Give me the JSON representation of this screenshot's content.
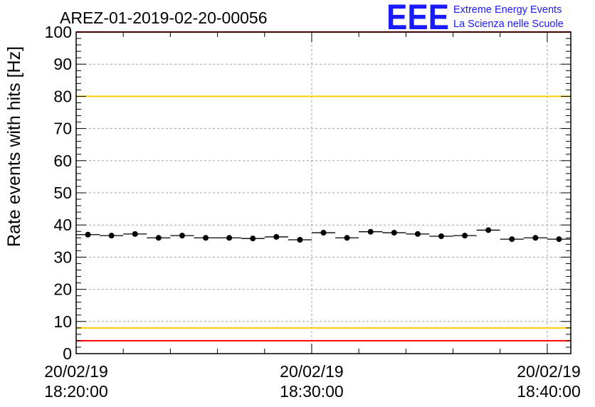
{
  "chart_data": {
    "type": "scatter",
    "title": "AREZ-01-2019-02-20-00056",
    "ylabel": "Rate events with hits [Hz]",
    "xlabel": "",
    "ylim": [
      0,
      100
    ],
    "yticks": [
      0,
      10,
      20,
      30,
      40,
      50,
      60,
      70,
      80,
      90,
      100
    ],
    "xlim_minutes": [
      0,
      21
    ],
    "xticks": [
      {
        "minute": 0,
        "date": "20/02/19",
        "time": "18:20:00"
      },
      {
        "minute": 10,
        "date": "20/02/19",
        "time": "18:30:00"
      },
      {
        "minute": 20,
        "date": "20/02/19",
        "time": "18:40:00"
      }
    ],
    "grid": true,
    "reference_lines": [
      {
        "y": 100,
        "color": "#ff0000"
      },
      {
        "y": 80,
        "color": "#ffcc00"
      },
      {
        "y": 8,
        "color": "#ffcc00"
      },
      {
        "y": 4,
        "color": "#ff0000"
      }
    ],
    "series": [
      {
        "color": "#000000",
        "points": [
          {
            "x": 0.5,
            "y": 37.0
          },
          {
            "x": 1.5,
            "y": 36.7
          },
          {
            "x": 2.5,
            "y": 37.2
          },
          {
            "x": 3.5,
            "y": 36.0
          },
          {
            "x": 4.5,
            "y": 36.7
          },
          {
            "x": 5.5,
            "y": 36.0
          },
          {
            "x": 6.5,
            "y": 36.0
          },
          {
            "x": 7.5,
            "y": 35.8
          },
          {
            "x": 8.5,
            "y": 36.3
          },
          {
            "x": 9.5,
            "y": 35.4
          },
          {
            "x": 10.5,
            "y": 37.6
          },
          {
            "x": 11.5,
            "y": 36.0
          },
          {
            "x": 12.5,
            "y": 37.9
          },
          {
            "x": 13.5,
            "y": 37.6
          },
          {
            "x": 14.5,
            "y": 37.2
          },
          {
            "x": 15.5,
            "y": 36.5
          },
          {
            "x": 16.5,
            "y": 36.7
          },
          {
            "x": 17.5,
            "y": 38.4
          },
          {
            "x": 18.5,
            "y": 35.6
          },
          {
            "x": 19.5,
            "y": 36.0
          },
          {
            "x": 20.5,
            "y": 35.6
          }
        ]
      }
    ]
  },
  "logo": {
    "mark": "EEE",
    "line1": "Extreme Energy Events",
    "line2": "La Scienza nelle Scuole",
    "color": "#1a1aff"
  }
}
